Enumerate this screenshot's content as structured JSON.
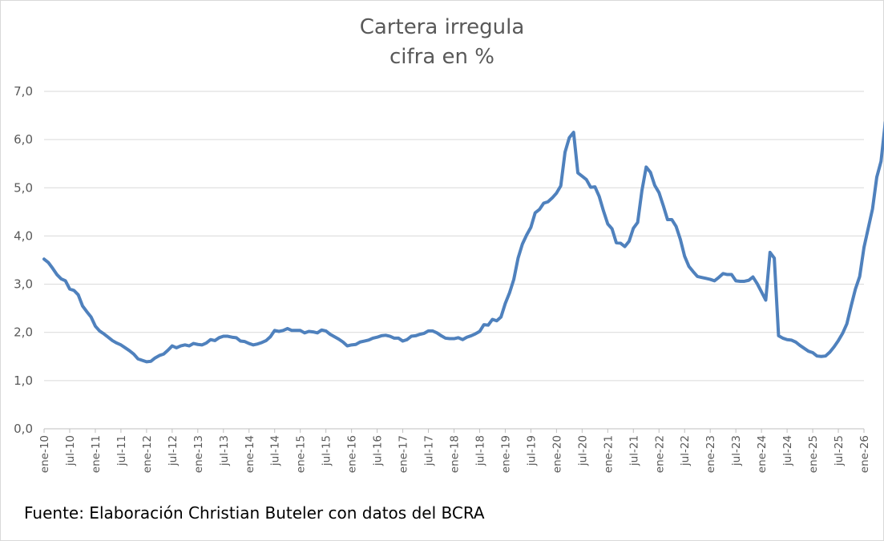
{
  "chart_data": {
    "type": "line",
    "title": "Cartera irregula",
    "subtitle": "cifra en %",
    "source": "Fuente: Elaboración Christian Buteler con datos del BCRA",
    "xlabel": "",
    "ylabel": "",
    "ylim": [
      0,
      7
    ],
    "yticks": [
      "0,0",
      "1,0",
      "2,0",
      "3,0",
      "4,0",
      "5,0",
      "6,0",
      "7,0"
    ],
    "xtick_labels": [
      "ene-10",
      "jul-10",
      "ene-11",
      "jul-11",
      "ene-12",
      "jul-12",
      "ene-13",
      "jul-13",
      "ene-14",
      "jul-14",
      "ene-15",
      "jul-15",
      "ene-16",
      "jul-16",
      "ene-17",
      "jul-17",
      "ene-18",
      "jul-18",
      "ene-19",
      "jul-19",
      "ene-20",
      "jul-20",
      "ene-21",
      "jul-21",
      "ene-22",
      "jul-22",
      "ene-23",
      "jul-23",
      "ene-24",
      "jul-24",
      "ene-25",
      "jul-25",
      "ene-26"
    ],
    "grid": true,
    "legend": "none",
    "line_color": "#4f81bd",
    "series": [
      {
        "start": "2010-01",
        "frequency": "monthly",
        "values": [
          3.52,
          3.45,
          3.33,
          3.2,
          3.11,
          3.07,
          2.9,
          2.87,
          2.78,
          2.55,
          2.43,
          2.32,
          2.13,
          2.03,
          1.97,
          1.9,
          1.83,
          1.78,
          1.74,
          1.68,
          1.62,
          1.55,
          1.45,
          1.42,
          1.39,
          1.4,
          1.47,
          1.52,
          1.55,
          1.63,
          1.72,
          1.68,
          1.72,
          1.74,
          1.72,
          1.77,
          1.75,
          1.74,
          1.78,
          1.85,
          1.83,
          1.89,
          1.92,
          1.92,
          1.9,
          1.89,
          1.82,
          1.81,
          1.77,
          1.74,
          1.76,
          1.79,
          1.83,
          1.91,
          2.04,
          2.02,
          2.04,
          2.08,
          2.04,
          2.04,
          2.04,
          1.99,
          2.02,
          2.01,
          1.99,
          2.05,
          2.03,
          1.96,
          1.91,
          1.86,
          1.8,
          1.72,
          1.74,
          1.75,
          1.8,
          1.82,
          1.84,
          1.88,
          1.9,
          1.93,
          1.94,
          1.92,
          1.88,
          1.88,
          1.82,
          1.85,
          1.92,
          1.93,
          1.96,
          1.98,
          2.03,
          2.03,
          1.99,
          1.93,
          1.88,
          1.87,
          1.87,
          1.89,
          1.85,
          1.9,
          1.93,
          1.97,
          2.02,
          2.16,
          2.15,
          2.27,
          2.24,
          2.32,
          2.6,
          2.82,
          3.1,
          3.54,
          3.83,
          4.02,
          4.18,
          4.48,
          4.55,
          4.68,
          4.71,
          4.79,
          4.89,
          5.04,
          5.74,
          6.04,
          6.15,
          5.31,
          5.24,
          5.17,
          5.01,
          5.02,
          4.82,
          4.52,
          4.25,
          4.15,
          3.86,
          3.85,
          3.78,
          3.89,
          4.16,
          4.28,
          4.94,
          5.43,
          5.32,
          5.05,
          4.9,
          4.63,
          4.34,
          4.34,
          4.2,
          3.93,
          3.58,
          3.37,
          3.26,
          3.16,
          3.14,
          3.12,
          3.1,
          3.07,
          3.14,
          3.22,
          3.2,
          3.2,
          3.07,
          3.06,
          3.06,
          3.08,
          3.15,
          3.01,
          2.84,
          2.67,
          3.66,
          3.54,
          1.93,
          1.88,
          1.85,
          1.84,
          1.8,
          1.73,
          1.67,
          1.61,
          1.58,
          1.51,
          1.5,
          1.51,
          1.59,
          1.7,
          1.83,
          1.98,
          2.18,
          2.55,
          2.9,
          3.16,
          3.76,
          4.16,
          4.56,
          5.22,
          5.55,
          6.36
        ]
      }
    ]
  }
}
